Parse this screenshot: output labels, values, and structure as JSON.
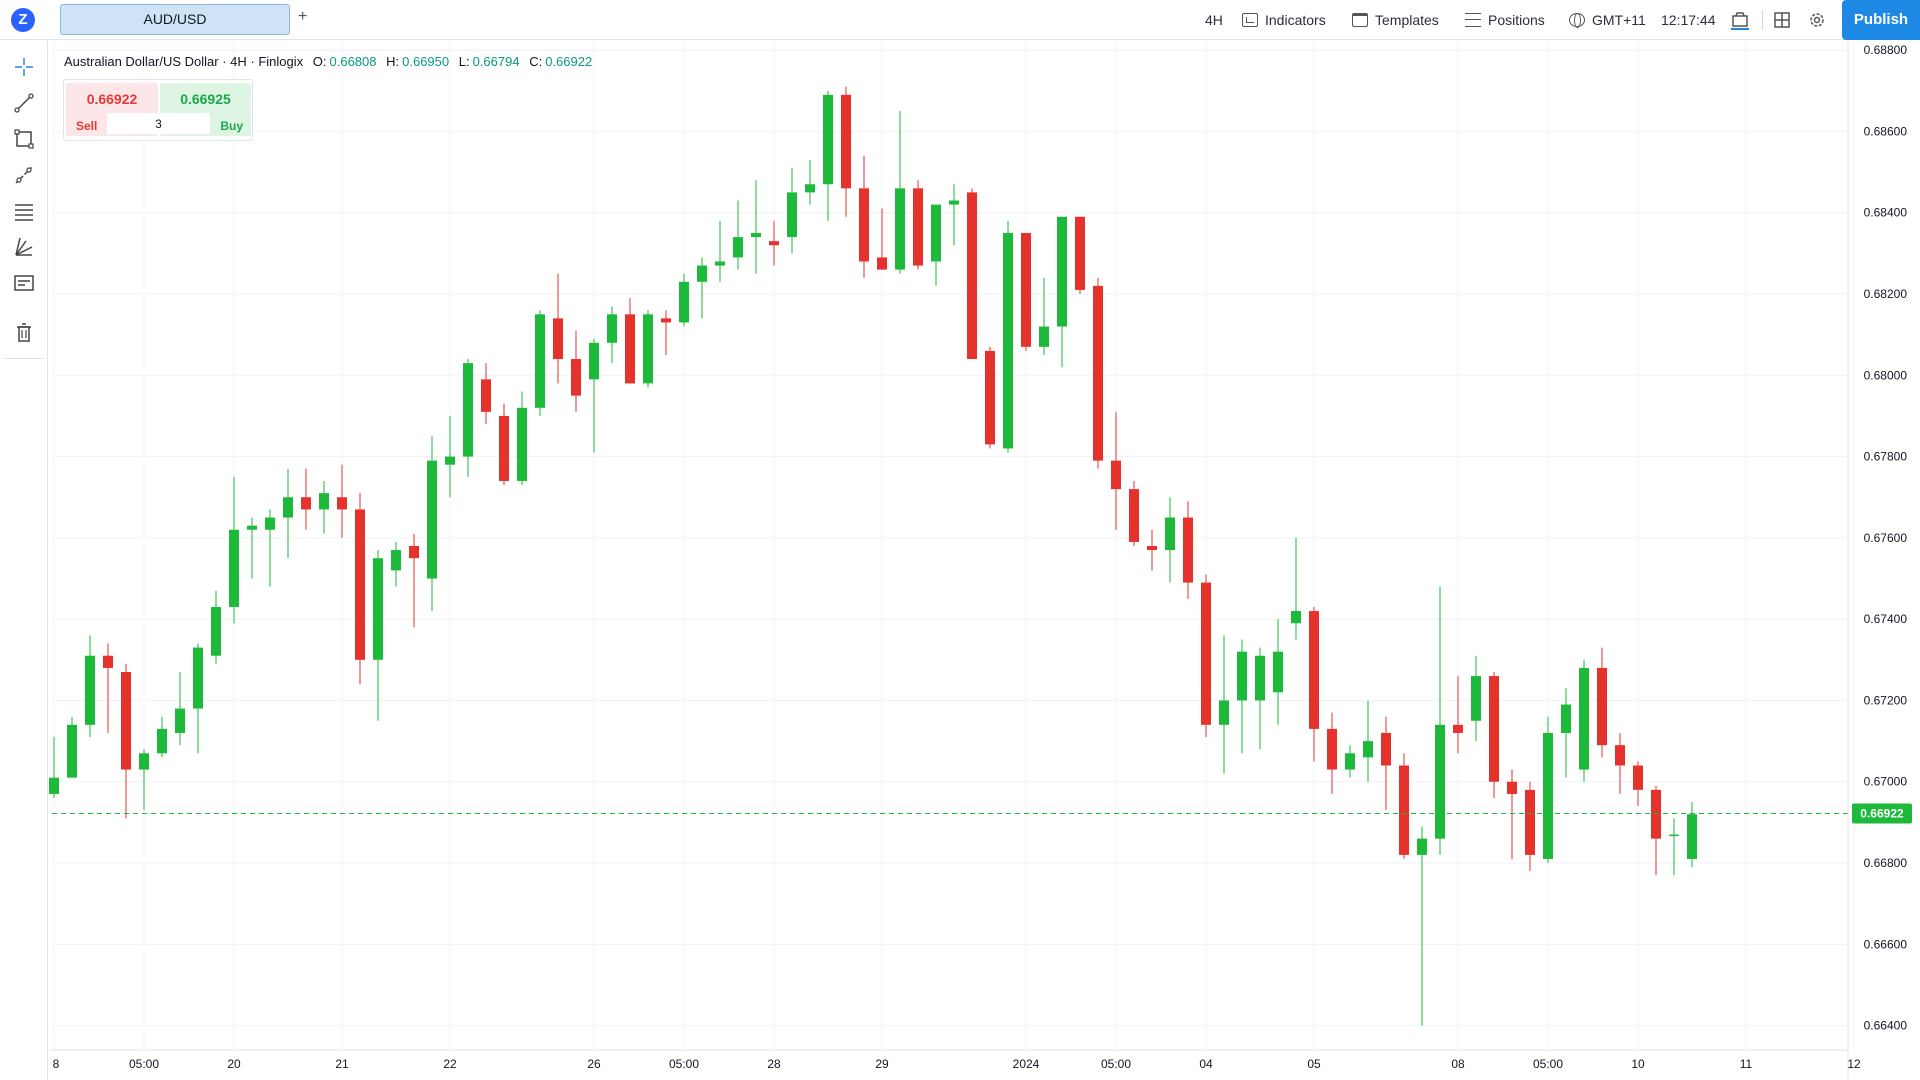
{
  "header": {
    "logo_glyph": "Z",
    "symbol_tab": "AUD/USD",
    "add_tab": "+",
    "interval": "4H",
    "indicators": "Indicators",
    "templates": "Templates",
    "positions": "Positions",
    "timezone": "GMT+11",
    "clock": "12:17:44",
    "publish": "Publish"
  },
  "left_toolbar": {
    "tools": [
      "crosshair-icon",
      "trend-line-icon",
      "rectangle-icon",
      "path-icon",
      "fib-retracement-icon",
      "pitchfork-icon",
      "text-note-icon",
      "trash-icon"
    ]
  },
  "legend": {
    "title": "Australian Dollar/US Dollar · 4H · Finlogix",
    "o_label": "O:",
    "o": "0.66808",
    "h_label": "H:",
    "h": "0.66950",
    "l_label": "L:",
    "l": "0.66794",
    "c_label": "C:",
    "c": "0.66922"
  },
  "trade": {
    "sell_price": "0.66922",
    "buy_price": "0.66925",
    "sell_label": "Sell",
    "buy_label": "Buy",
    "quantity": "3"
  },
  "chart_data": {
    "type": "candlestick",
    "ylim": [
      0.6634,
      0.6882
    ],
    "y_ticks": [
      "0.68800",
      "0.68600",
      "0.68400",
      "0.68200",
      "0.68000",
      "0.67800",
      "0.67600",
      "0.67400",
      "0.67200",
      "0.67000",
      "0.66800",
      "0.66600",
      "0.66400"
    ],
    "x_ticks": [
      {
        "label": "8",
        "index": 0
      },
      {
        "label": "05:00",
        "index": 5
      },
      {
        "label": "20",
        "index": 10
      },
      {
        "label": "21",
        "index": 16
      },
      {
        "label": "22",
        "index": 22
      },
      {
        "label": "26",
        "index": 30
      },
      {
        "label": "05:00",
        "index": 35
      },
      {
        "label": "28",
        "index": 40
      },
      {
        "label": "29",
        "index": 46
      },
      {
        "label": "2024",
        "index": 54
      },
      {
        "label": "05:00",
        "index": 59
      },
      {
        "label": "04",
        "index": 64
      },
      {
        "label": "05",
        "index": 70
      },
      {
        "label": "08",
        "index": 78
      },
      {
        "label": "05:00",
        "index": 83
      },
      {
        "label": "10",
        "index": 88
      },
      {
        "label": "11",
        "index": 94
      },
      {
        "label": "12",
        "index": 100
      }
    ],
    "last_price": 0.66922,
    "last_price_label": "0.66922",
    "up_color": "#1db93b",
    "down_color": "#e5322d",
    "candles": [
      [
        0.6697,
        0.6711,
        0.6696,
        0.6701
      ],
      [
        0.6701,
        0.6716,
        0.6701,
        0.6714
      ],
      [
        0.6714,
        0.6736,
        0.6711,
        0.6731
      ],
      [
        0.6731,
        0.6734,
        0.6712,
        0.6728
      ],
      [
        0.6727,
        0.6729,
        0.6691,
        0.6703
      ],
      [
        0.6703,
        0.6708,
        0.6693,
        0.6707
      ],
      [
        0.6707,
        0.6716,
        0.6706,
        0.6713
      ],
      [
        0.6712,
        0.6727,
        0.6709,
        0.6718
      ],
      [
        0.6718,
        0.6734,
        0.6707,
        0.6733
      ],
      [
        0.6731,
        0.6747,
        0.6729,
        0.6743
      ],
      [
        0.6743,
        0.6775,
        0.6739,
        0.6762
      ],
      [
        0.6762,
        0.6765,
        0.675,
        0.6763
      ],
      [
        0.6762,
        0.6767,
        0.6748,
        0.6765
      ],
      [
        0.6765,
        0.6777,
        0.6755,
        0.677
      ],
      [
        0.677,
        0.6777,
        0.6762,
        0.6767
      ],
      [
        0.6767,
        0.6774,
        0.6761,
        0.6771
      ],
      [
        0.677,
        0.6778,
        0.676,
        0.6767
      ],
      [
        0.6767,
        0.6771,
        0.6724,
        0.673
      ],
      [
        0.673,
        0.6757,
        0.6715,
        0.6755
      ],
      [
        0.6752,
        0.6759,
        0.6748,
        0.6757
      ],
      [
        0.6758,
        0.6761,
        0.6738,
        0.6755
      ],
      [
        0.675,
        0.6785,
        0.6742,
        0.6779
      ],
      [
        0.6778,
        0.679,
        0.677,
        0.678
      ],
      [
        0.678,
        0.6804,
        0.6775,
        0.6803
      ],
      [
        0.6799,
        0.6803,
        0.6788,
        0.6791
      ],
      [
        0.679,
        0.6793,
        0.6773,
        0.6774
      ],
      [
        0.6774,
        0.6796,
        0.6773,
        0.6792
      ],
      [
        0.6792,
        0.6816,
        0.679,
        0.6815
      ],
      [
        0.6814,
        0.6825,
        0.6798,
        0.6804
      ],
      [
        0.6804,
        0.6811,
        0.6791,
        0.6795
      ],
      [
        0.6799,
        0.6809,
        0.6781,
        0.6808
      ],
      [
        0.6808,
        0.6817,
        0.6803,
        0.6815
      ],
      [
        0.6815,
        0.6819,
        0.6798,
        0.6798
      ],
      [
        0.6798,
        0.6816,
        0.6797,
        0.6815
      ],
      [
        0.6814,
        0.6816,
        0.6805,
        0.6813
      ],
      [
        0.6813,
        0.6825,
        0.6812,
        0.6823
      ],
      [
        0.6823,
        0.6829,
        0.6814,
        0.6827
      ],
      [
        0.6827,
        0.6838,
        0.6823,
        0.6828
      ],
      [
        0.6829,
        0.6843,
        0.6826,
        0.6834
      ],
      [
        0.6834,
        0.6848,
        0.6825,
        0.6835
      ],
      [
        0.6833,
        0.6838,
        0.6827,
        0.6832
      ],
      [
        0.6834,
        0.6851,
        0.683,
        0.6845
      ],
      [
        0.6845,
        0.6853,
        0.6842,
        0.6847
      ],
      [
        0.6847,
        0.687,
        0.6838,
        0.6869
      ],
      [
        0.6869,
        0.6871,
        0.6839,
        0.6846
      ],
      [
        0.6846,
        0.6854,
        0.6824,
        0.6828
      ],
      [
        0.6829,
        0.6841,
        0.6826,
        0.6826
      ],
      [
        0.6826,
        0.6865,
        0.6825,
        0.6846
      ],
      [
        0.6846,
        0.6848,
        0.6826,
        0.6827
      ],
      [
        0.6828,
        0.6842,
        0.6822,
        0.6842
      ],
      [
        0.6842,
        0.6847,
        0.6832,
        0.6843
      ],
      [
        0.6845,
        0.6846,
        0.6804,
        0.6804
      ],
      [
        0.6806,
        0.6807,
        0.6782,
        0.6783
      ],
      [
        0.6782,
        0.6838,
        0.6781,
        0.6835
      ],
      [
        0.6835,
        0.6835,
        0.6806,
        0.6807
      ],
      [
        0.6807,
        0.6824,
        0.6805,
        0.6812
      ],
      [
        0.6812,
        0.6839,
        0.6802,
        0.6839
      ],
      [
        0.6839,
        0.6839,
        0.682,
        0.6821
      ],
      [
        0.6822,
        0.6824,
        0.6777,
        0.6779
      ],
      [
        0.6779,
        0.6791,
        0.6762,
        0.6772
      ],
      [
        0.6772,
        0.6774,
        0.6758,
        0.6759
      ],
      [
        0.6758,
        0.6762,
        0.6752,
        0.6757
      ],
      [
        0.6757,
        0.677,
        0.6749,
        0.6765
      ],
      [
        0.6765,
        0.6769,
        0.6745,
        0.6749
      ],
      [
        0.6749,
        0.6751,
        0.6711,
        0.6714
      ],
      [
        0.6714,
        0.6736,
        0.6702,
        0.672
      ],
      [
        0.672,
        0.6735,
        0.6707,
        0.6732
      ],
      [
        0.672,
        0.6733,
        0.6708,
        0.6731
      ],
      [
        0.6722,
        0.674,
        0.6714,
        0.6732
      ],
      [
        0.6739,
        0.676,
        0.6735,
        0.6742
      ],
      [
        0.6742,
        0.6743,
        0.6705,
        0.6713
      ],
      [
        0.6713,
        0.6717,
        0.6697,
        0.6703
      ],
      [
        0.6703,
        0.6709,
        0.6701,
        0.6707
      ],
      [
        0.6706,
        0.672,
        0.67,
        0.671
      ],
      [
        0.6712,
        0.6716,
        0.6693,
        0.6704
      ],
      [
        0.6704,
        0.6707,
        0.6681,
        0.6682
      ],
      [
        0.6682,
        0.6689,
        0.664,
        0.6686
      ],
      [
        0.6686,
        0.6748,
        0.6682,
        0.6714
      ],
      [
        0.6714,
        0.6726,
        0.6707,
        0.6712
      ],
      [
        0.6715,
        0.6731,
        0.671,
        0.6726
      ],
      [
        0.6726,
        0.6727,
        0.6696,
        0.67
      ],
      [
        0.67,
        0.6703,
        0.6681,
        0.6697
      ],
      [
        0.6698,
        0.67,
        0.6678,
        0.6682
      ],
      [
        0.6681,
        0.6716,
        0.668,
        0.6712
      ],
      [
        0.6712,
        0.6723,
        0.6701,
        0.6719
      ],
      [
        0.6703,
        0.673,
        0.67,
        0.6728
      ],
      [
        0.6728,
        0.6733,
        0.6706,
        0.6709
      ],
      [
        0.6709,
        0.6712,
        0.6697,
        0.6704
      ],
      [
        0.6704,
        0.6705,
        0.6694,
        0.6698
      ],
      [
        0.6698,
        0.6699,
        0.6677,
        0.6686
      ],
      [
        0.6687,
        0.6691,
        0.6677,
        0.6687
      ],
      [
        0.6681,
        0.6695,
        0.6679,
        0.6692
      ]
    ]
  }
}
